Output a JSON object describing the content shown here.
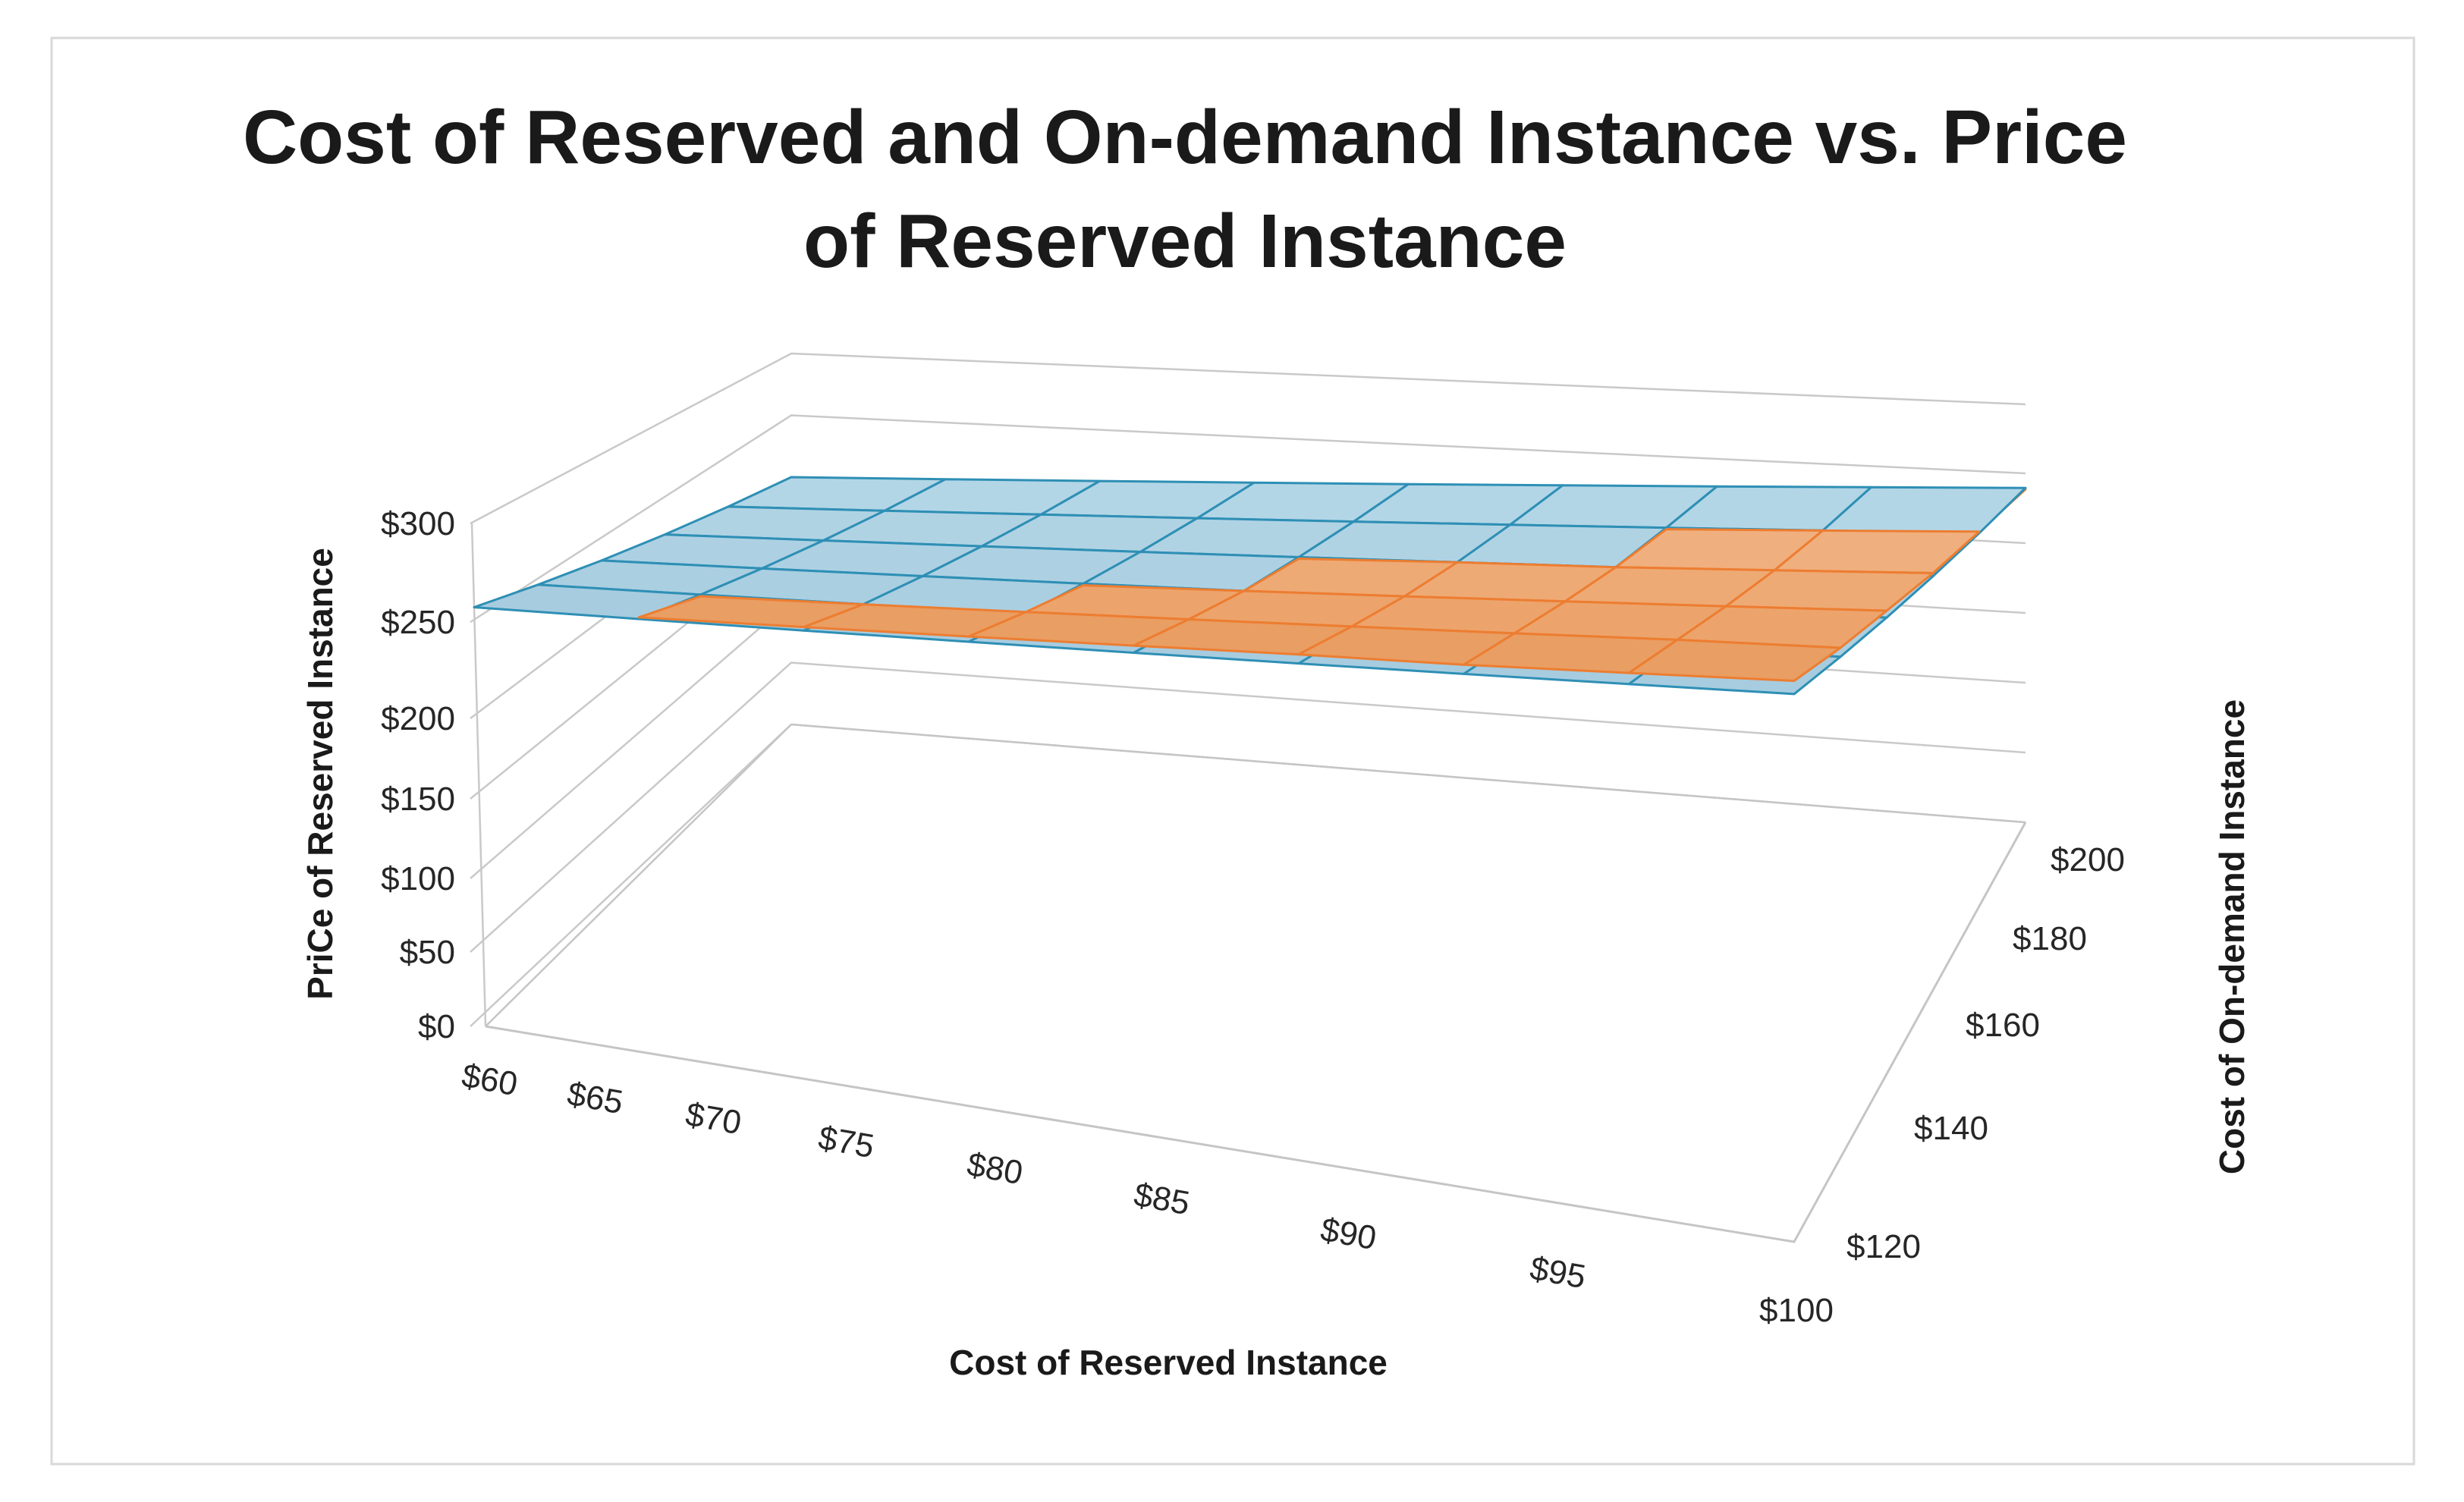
{
  "title": {
    "line1": "Cost of Reserved and On-demand Instance vs. Price",
    "line2": "of Reserved Instance"
  },
  "chart_data": {
    "type": "surface3d",
    "title": "Cost of Reserved and On-demand Instance vs. Price of Reserved Instance",
    "grid": "on",
    "legend": "none",
    "x_axis": {
      "label": "Cost of Reserved Instance",
      "tick_labels": [
        "$60",
        "$65",
        "$70",
        "$75",
        "$80",
        "$85",
        "$90",
        "$95",
        "$100"
      ],
      "values": [
        60,
        65,
        70,
        75,
        80,
        85,
        90,
        95,
        100
      ]
    },
    "depth_axis": {
      "label": "Cost of On-demand Instance",
      "tick_labels": [
        "$100",
        "$120",
        "$140",
        "$160",
        "$180",
        "$200"
      ],
      "values": [
        100,
        120,
        140,
        160,
        180,
        200
      ]
    },
    "value_axis": {
      "label": "PriCe of Reserved Instance",
      "tick_labels": [
        "$0",
        "$50",
        "$100",
        "$150",
        "$200",
        "$250",
        "$300"
      ],
      "values": [
        0,
        50,
        100,
        150,
        200,
        250,
        300
      ],
      "range": [
        0,
        300
      ]
    },
    "series": [
      {
        "name": "blue surface (on-demand cost plane)",
        "fill_front": "#A5CBDE",
        "fill_back": "#B4D7E7",
        "line_color": "#2E8FB5",
        "rows_are_depth_values": [
          100,
          120,
          140,
          160,
          180,
          200
        ],
        "values": [
          [
            250,
            255,
            260,
            265,
            270,
            275,
            280,
            285,
            290
          ],
          [
            240,
            245,
            250,
            255,
            260,
            265,
            270,
            275,
            280
          ],
          [
            230,
            235,
            240,
            245,
            250,
            255,
            260,
            265,
            270
          ],
          [
            220,
            225,
            230,
            235,
            240,
            245,
            250,
            255,
            260
          ],
          [
            210,
            215,
            220,
            225,
            230,
            235,
            240,
            245,
            250
          ],
          [
            200,
            205,
            210,
            215,
            220,
            225,
            230,
            235,
            240
          ]
        ]
      },
      {
        "name": "orange surface (reserved cost plane)",
        "fill_front": "#E89B5E",
        "fill_back": "#F4B88C",
        "line_color": "#ED7D31",
        "rows_are_depth_values": [
          100,
          120,
          140,
          160,
          180,
          200
        ],
        "values": [
          [
            250,
            256,
            262,
            268,
            274,
            280,
            285,
            291,
            297
          ],
          [
            238,
            244,
            250,
            256,
            262,
            268,
            274,
            280,
            285
          ],
          [
            227,
            233,
            239,
            244,
            250,
            256,
            262,
            268,
            274
          ],
          [
            215,
            221,
            227,
            233,
            239,
            245,
            250,
            256,
            262
          ],
          [
            204,
            210,
            215,
            221,
            227,
            233,
            239,
            245,
            251
          ],
          [
            192,
            198,
            204,
            210,
            216,
            222,
            227,
            233,
            239
          ]
        ]
      }
    ],
    "wall_grid_color": "#C9C9C9",
    "floor_edge_color": "#C5C5C5",
    "chart_border_color": "#D9D9D9",
    "background": "#FFFFFF"
  }
}
